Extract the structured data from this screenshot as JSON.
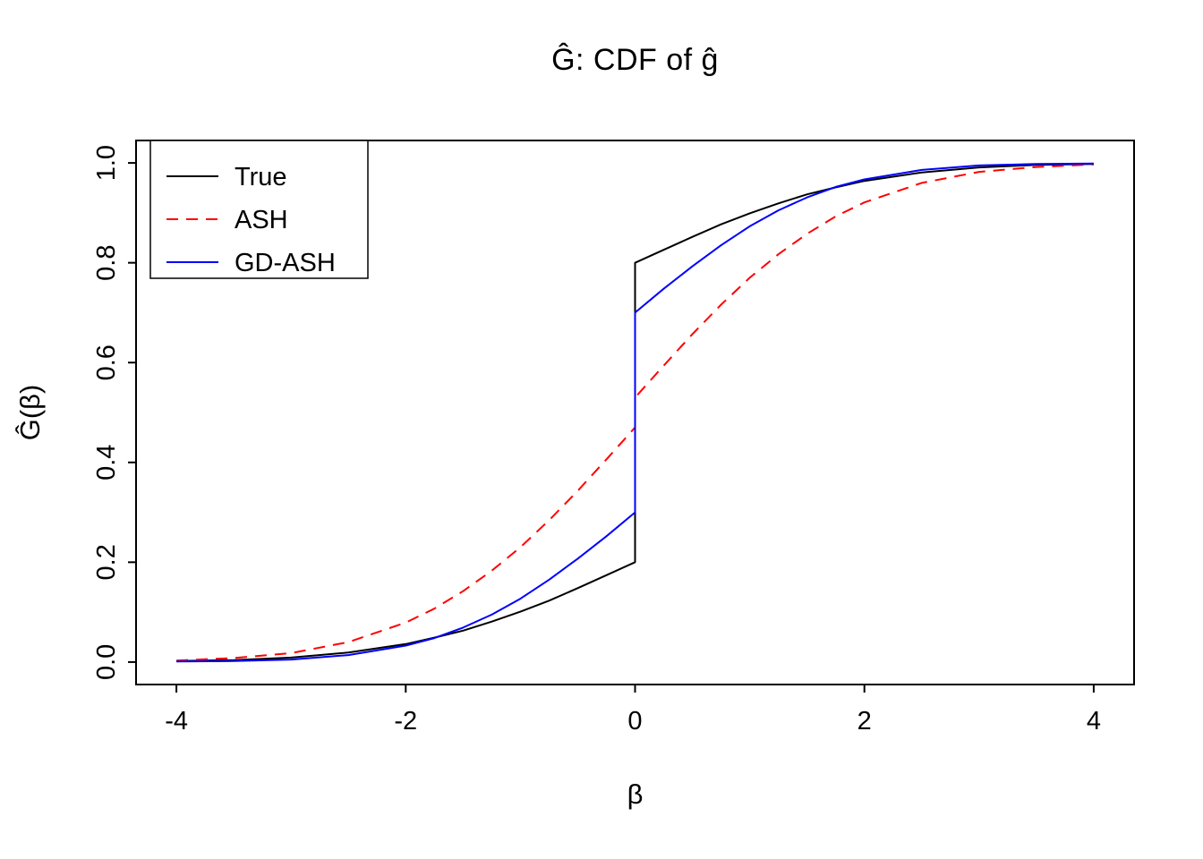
{
  "figure": {
    "background": "#ffffff"
  },
  "chart_data": {
    "type": "line",
    "title": "Ĝ: CDF of ĝ",
    "xlabel": "β",
    "ylabel": "Ĝ(β)",
    "xlim": [
      -4,
      4
    ],
    "ylim": [
      0,
      1
    ],
    "x_ticks": [
      -4,
      -2,
      0,
      2,
      4
    ],
    "x_tick_labels": [
      "-4",
      "-2",
      "0",
      "2",
      "4"
    ],
    "y_ticks": [
      0,
      0.2,
      0.4,
      0.6,
      0.8,
      1
    ],
    "y_tick_labels": [
      "0.0",
      "0.2",
      "0.4",
      "0.6",
      "0.8",
      "1.0"
    ],
    "grid": false,
    "axis_color": "#000000",
    "legend": {
      "position": "top-left",
      "entries": [
        {
          "label": "True",
          "color": "#000000",
          "dash": "solid"
        },
        {
          "label": "ASH",
          "color": "#ff0000",
          "dash": "dashed"
        },
        {
          "label": "GD-ASH",
          "color": "#0000ff",
          "dash": "solid"
        }
      ]
    },
    "series": [
      {
        "name": "True",
        "color": "#000000",
        "dash": "solid",
        "points": [
          [
            -4,
            0.002
          ],
          [
            -3.5,
            0.004
          ],
          [
            -3,
            0.009
          ],
          [
            -2.5,
            0.019
          ],
          [
            -2,
            0.036
          ],
          [
            -1.75,
            0.049
          ],
          [
            -1.5,
            0.063
          ],
          [
            -1.25,
            0.081
          ],
          [
            -1,
            0.101
          ],
          [
            -0.75,
            0.123
          ],
          [
            -0.5,
            0.148
          ],
          [
            -0.25,
            0.174
          ],
          [
            0,
            0.2
          ],
          [
            0,
            0.8
          ],
          [
            0.25,
            0.826
          ],
          [
            0.5,
            0.852
          ],
          [
            0.75,
            0.877
          ],
          [
            1,
            0.899
          ],
          [
            1.25,
            0.919
          ],
          [
            1.5,
            0.937
          ],
          [
            1.75,
            0.951
          ],
          [
            2,
            0.964
          ],
          [
            2.5,
            0.981
          ],
          [
            3,
            0.991
          ],
          [
            3.5,
            0.996
          ],
          [
            4,
            0.998
          ]
        ]
      },
      {
        "name": "ASH",
        "color": "#ff0000",
        "dash": "dashed",
        "points": [
          [
            -4,
            0.003
          ],
          [
            -3.5,
            0.008
          ],
          [
            -3,
            0.018
          ],
          [
            -2.5,
            0.04
          ],
          [
            -2,
            0.079
          ],
          [
            -1.75,
            0.107
          ],
          [
            -1.5,
            0.142
          ],
          [
            -1.25,
            0.183
          ],
          [
            -1,
            0.23
          ],
          [
            -0.75,
            0.284
          ],
          [
            -0.5,
            0.343
          ],
          [
            -0.25,
            0.406
          ],
          [
            -0.125,
            0.438
          ],
          [
            0,
            0.47
          ],
          [
            0,
            0.53
          ],
          [
            0.125,
            0.562
          ],
          [
            0.25,
            0.594
          ],
          [
            0.5,
            0.657
          ],
          [
            0.75,
            0.716
          ],
          [
            1,
            0.77
          ],
          [
            1.25,
            0.817
          ],
          [
            1.5,
            0.858
          ],
          [
            1.75,
            0.893
          ],
          [
            2,
            0.921
          ],
          [
            2.5,
            0.96
          ],
          [
            3,
            0.982
          ],
          [
            3.5,
            0.992
          ],
          [
            4,
            0.997
          ]
        ]
      },
      {
        "name": "GD-ASH",
        "color": "#0000ff",
        "dash": "solid",
        "points": [
          [
            -4,
            0.001
          ],
          [
            -3.5,
            0.002
          ],
          [
            -3,
            0.005
          ],
          [
            -2.5,
            0.014
          ],
          [
            -2,
            0.033
          ],
          [
            -1.75,
            0.048
          ],
          [
            -1.5,
            0.069
          ],
          [
            -1.25,
            0.095
          ],
          [
            -1,
            0.127
          ],
          [
            -0.75,
            0.165
          ],
          [
            -0.5,
            0.207
          ],
          [
            -0.25,
            0.252
          ],
          [
            0,
            0.3
          ],
          [
            0,
            0.7
          ],
          [
            0.25,
            0.748
          ],
          [
            0.5,
            0.793
          ],
          [
            0.75,
            0.835
          ],
          [
            1,
            0.873
          ],
          [
            1.25,
            0.905
          ],
          [
            1.5,
            0.931
          ],
          [
            1.75,
            0.952
          ],
          [
            2,
            0.967
          ],
          [
            2.5,
            0.986
          ],
          [
            3,
            0.995
          ],
          [
            3.5,
            0.998
          ],
          [
            4,
            0.999
          ]
        ]
      }
    ]
  }
}
